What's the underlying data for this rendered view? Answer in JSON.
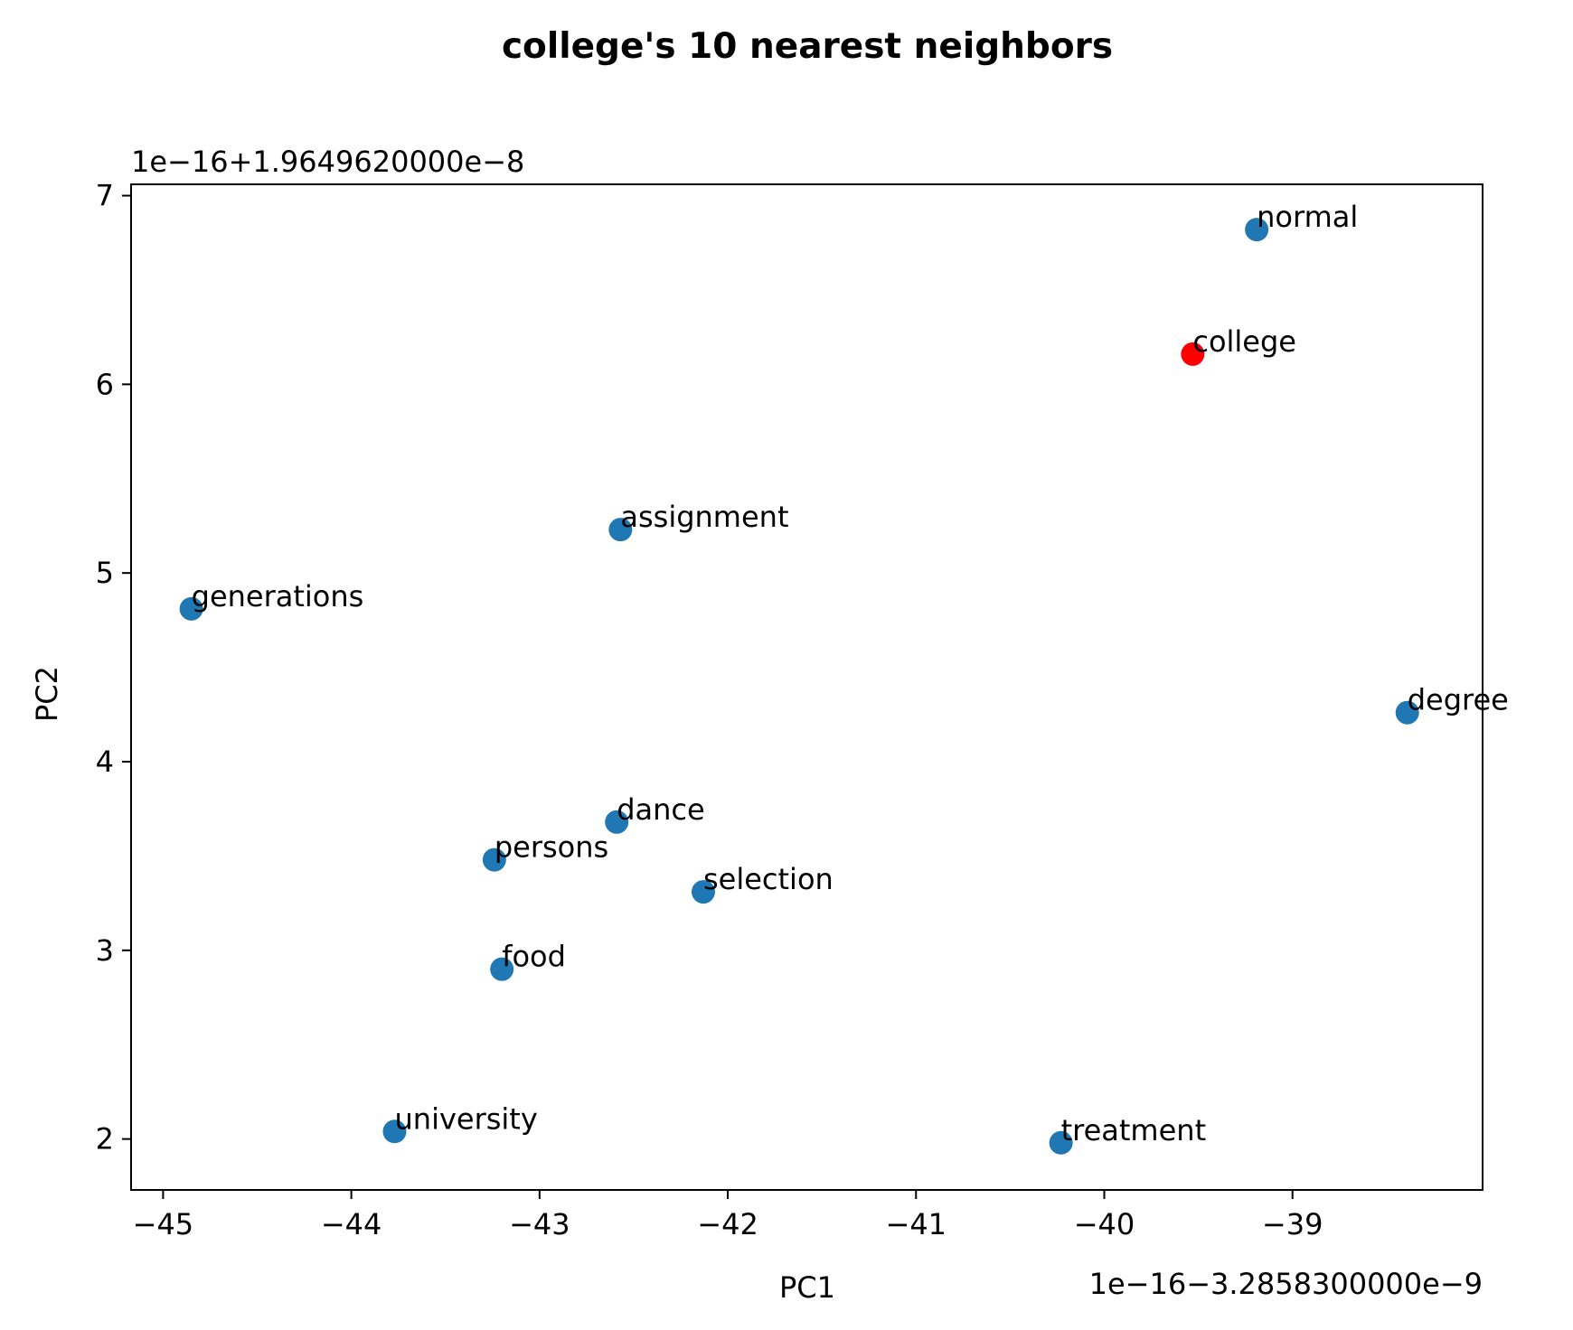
{
  "chart_data": {
    "type": "scatter",
    "title": "college's 10 nearest neighbors",
    "xlabel": "PC1",
    "ylabel": "PC2",
    "x_offset_text": "1e−16−3.2858300000e−9",
    "y_offset_text": "1e−16+1.9649620000e−8",
    "xlim": [
      -45.17,
      -37.99
    ],
    "ylim": [
      1.73,
      7.06
    ],
    "x_ticks": [
      -45,
      -44,
      -43,
      -42,
      -41,
      -40,
      -39
    ],
    "x_tick_labels": [
      "−45",
      "−44",
      "−43",
      "−42",
      "−41",
      "−40",
      "−39"
    ],
    "y_ticks": [
      2,
      3,
      4,
      5,
      6,
      7
    ],
    "y_tick_labels": [
      "2",
      "3",
      "4",
      "5",
      "6",
      "7"
    ],
    "grid": false,
    "colors": {
      "neighbor": "#1f77b4",
      "target": "#ff0000"
    },
    "points": [
      {
        "label": "normal",
        "x": -39.19,
        "y": 6.82,
        "highlight": false
      },
      {
        "label": "college",
        "x": -39.53,
        "y": 6.16,
        "highlight": true
      },
      {
        "label": "assignment",
        "x": -42.57,
        "y": 5.23,
        "highlight": false
      },
      {
        "label": "generations",
        "x": -44.85,
        "y": 4.81,
        "highlight": false
      },
      {
        "label": "degree",
        "x": -38.39,
        "y": 4.26,
        "highlight": false
      },
      {
        "label": "dance",
        "x": -42.59,
        "y": 3.68,
        "highlight": false
      },
      {
        "label": "persons",
        "x": -43.24,
        "y": 3.48,
        "highlight": false
      },
      {
        "label": "selection",
        "x": -42.13,
        "y": 3.31,
        "highlight": false
      },
      {
        "label": "food",
        "x": -43.2,
        "y": 2.9,
        "highlight": false
      },
      {
        "label": "university",
        "x": -43.77,
        "y": 2.04,
        "highlight": false
      },
      {
        "label": "treatment",
        "x": -40.23,
        "y": 1.98,
        "highlight": false
      }
    ]
  }
}
